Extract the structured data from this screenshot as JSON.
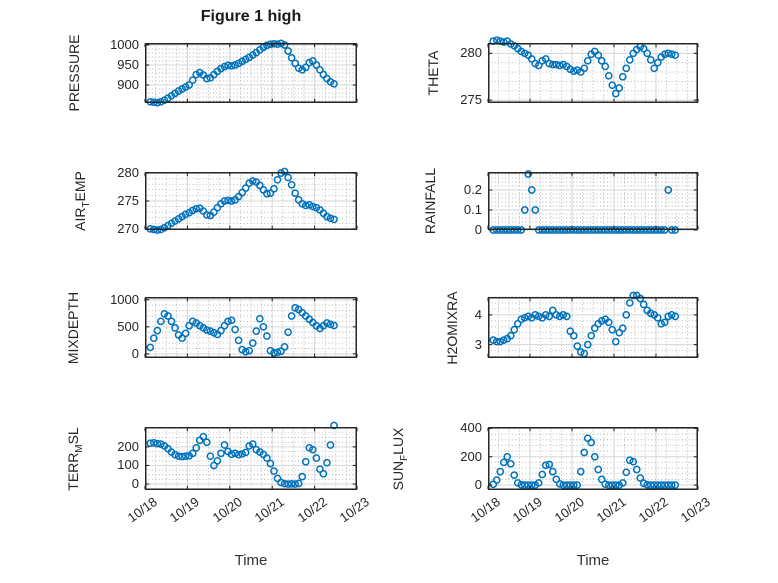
{
  "figure": {
    "title": "Figure 1 high",
    "marker_color": "#0072BD",
    "axis_color": "#262626",
    "grid_major_color": "#d6d6d6",
    "grid_minor_color": "#b0b0b0",
    "background": "#ffffff"
  },
  "x_axis": {
    "label": "Time",
    "tick_labels": [
      "10/18",
      "10/19",
      "10/20",
      "10/21",
      "10/22",
      "10/23"
    ],
    "tick_hours": [
      0,
      24,
      48,
      72,
      96,
      120
    ],
    "range_hours": [
      0,
      120
    ],
    "minor_step_hours": 6
  },
  "chart_data": {
    "type": "scatter",
    "marker": "open-circle",
    "grid": "major-solid-minor-dotted",
    "time_hours": [
      3,
      5,
      7,
      9,
      11,
      13,
      15,
      17,
      19,
      21,
      23,
      25,
      27,
      29,
      31,
      33,
      35,
      37,
      39,
      41,
      43,
      45,
      47,
      49,
      51,
      53,
      55,
      57,
      59,
      61,
      63,
      65,
      67,
      69,
      71,
      73,
      75,
      77,
      79,
      81,
      83,
      85,
      87,
      89,
      91,
      93,
      95,
      97,
      99,
      101,
      103,
      105,
      107
    ],
    "charts": [
      {
        "name": "PRESSURE",
        "ylabel_parts": [
          {
            "t": "PRESSURE"
          }
        ],
        "ylim": [
          855,
          1005
        ],
        "y_major_step": 50,
        "y_minor_step": 10,
        "yticks": [
          {
            "v": 900,
            "label": "900"
          },
          {
            "v": 950,
            "label": "950"
          },
          {
            "v": 1000,
            "label": "1000"
          }
        ],
        "values": [
          858,
          857,
          856,
          858,
          862,
          867,
          873,
          879,
          885,
          890,
          895,
          900,
          912,
          926,
          931,
          925,
          916,
          918,
          926,
          934,
          941,
          946,
          949,
          948,
          950,
          954,
          959,
          964,
          969,
          975,
          981,
          988,
          994,
          999,
          1002,
          1003,
          1002,
          1004,
          1000,
          985,
          968,
          954,
          942,
          938,
          944,
          956,
          960,
          950,
          938,
          926,
          916,
          908,
          903
        ]
      },
      {
        "name": "THETA",
        "ylabel_parts": [
          {
            "t": "THETA"
          }
        ],
        "ylim": [
          274.7,
          281.1
        ],
        "y_major_step": 5,
        "y_minor_step": 1,
        "yticks": [
          {
            "v": 275,
            "label": "275"
          },
          {
            "v": 280,
            "label": "280"
          }
        ],
        "values": [
          281.3,
          281.4,
          281.3,
          281.2,
          281.3,
          281.0,
          280.8,
          280.5,
          280.2,
          280.0,
          279.8,
          279.4,
          278.9,
          278.7,
          279.2,
          279.4,
          278.9,
          278.8,
          278.8,
          278.7,
          278.8,
          278.6,
          278.3,
          278.1,
          278.2,
          278.0,
          278.4,
          279.2,
          279.9,
          280.2,
          279.8,
          279.2,
          278.6,
          277.6,
          276.6,
          275.7,
          276.3,
          277.5,
          278.4,
          279.3,
          280.0,
          280.4,
          280.7,
          280.5,
          280.0,
          279.3,
          278.4,
          279.0,
          279.6,
          279.9,
          280.0,
          279.9,
          279.8
        ]
      },
      {
        "name": "AIR_TEMP",
        "ylabel_parts": [
          {
            "t": "AIR"
          },
          {
            "t": "T",
            "sub": true
          },
          {
            "t": "EMP"
          }
        ],
        "ylim": [
          269.8,
          280.2
        ],
        "y_major_step": 5,
        "y_minor_step": 1,
        "yticks": [
          {
            "v": 270,
            "label": "270"
          },
          {
            "v": 275,
            "label": "275"
          },
          {
            "v": 280,
            "label": "280"
          }
        ],
        "values": [
          270.0,
          269.9,
          269.8,
          269.9,
          270.2,
          270.6,
          271.0,
          271.4,
          271.8,
          272.2,
          272.6,
          272.9,
          273.3,
          273.6,
          273.7,
          273.2,
          272.5,
          272.4,
          273.0,
          273.8,
          274.5,
          275.0,
          275.1,
          275.0,
          275.2,
          275.8,
          276.5,
          277.3,
          278.2,
          278.6,
          278.4,
          277.8,
          277.0,
          276.3,
          276.4,
          277.2,
          278.8,
          280.0,
          280.3,
          279.2,
          277.9,
          276.4,
          275.2,
          274.5,
          274.2,
          274.3,
          274.0,
          273.8,
          273.4,
          272.8,
          272.2,
          271.9,
          271.7
        ]
      },
      {
        "name": "RAINFALL",
        "ylabel_parts": [
          {
            "t": "RAINFALL"
          }
        ],
        "ylim": [
          0,
          0.29
        ],
        "y_major_step": 0.1,
        "y_minor_step": 0.02,
        "yticks": [
          {
            "v": 0,
            "label": "0"
          },
          {
            "v": 0.1,
            "label": "0.1"
          },
          {
            "v": 0.2,
            "label": "0.2"
          }
        ],
        "values": [
          0,
          0,
          0,
          0,
          0,
          0,
          0,
          0,
          0,
          0.1,
          0.28,
          0.2,
          0.1,
          0,
          0,
          0,
          0,
          0,
          0,
          0,
          0,
          0,
          0,
          0,
          0,
          0,
          0,
          0,
          0,
          0,
          0,
          0,
          0,
          0,
          0,
          0,
          0,
          0,
          0,
          0,
          0,
          0,
          0,
          0,
          0,
          0,
          0,
          0,
          0,
          0,
          0.2,
          0,
          0
        ]
      },
      {
        "name": "MIXDEPTH",
        "ylabel_parts": [
          {
            "t": "MIXDEPTH"
          }
        ],
        "ylim": [
          -75,
          1050
        ],
        "y_major_step": 500,
        "y_minor_step": 100,
        "yticks": [
          {
            "v": 0,
            "label": "0"
          },
          {
            "v": 500,
            "label": "500"
          },
          {
            "v": 1000,
            "label": "1000"
          }
        ],
        "values": [
          120,
          290,
          430,
          600,
          740,
          700,
          600,
          480,
          350,
          290,
          380,
          520,
          600,
          570,
          520,
          480,
          440,
          420,
          390,
          360,
          430,
          520,
          600,
          620,
          450,
          250,
          80,
          40,
          60,
          200,
          420,
          650,
          500,
          330,
          60,
          20,
          30,
          50,
          130,
          400,
          700,
          850,
          820,
          760,
          700,
          640,
          580,
          520,
          470,
          520,
          570,
          545,
          525
        ]
      },
      {
        "name": "H2OMIXRA",
        "ylabel_parts": [
          {
            "t": "H2OMIXRA"
          }
        ],
        "ylim": [
          2.55,
          4.6
        ],
        "y_major_step": 1,
        "y_minor_step": 0.2,
        "yticks": [
          {
            "v": 3,
            "label": "3"
          },
          {
            "v": 4,
            "label": "4"
          }
        ],
        "values": [
          3.15,
          3.1,
          3.1,
          3.15,
          3.2,
          3.3,
          3.5,
          3.7,
          3.85,
          3.9,
          3.95,
          3.9,
          4.0,
          3.95,
          3.9,
          4.0,
          3.95,
          4.15,
          4.0,
          3.95,
          4.0,
          3.95,
          3.45,
          3.3,
          2.95,
          2.75,
          2.7,
          3.0,
          3.3,
          3.55,
          3.7,
          3.8,
          3.85,
          3.75,
          3.5,
          3.1,
          3.4,
          3.55,
          4.0,
          4.4,
          4.65,
          4.65,
          4.55,
          4.35,
          4.15,
          4.05,
          4.0,
          3.9,
          3.7,
          3.75,
          3.95,
          4.0,
          3.95
        ]
      },
      {
        "name": "TERR_MSL",
        "ylabel_parts": [
          {
            "t": "TERR"
          },
          {
            "t": "M",
            "sub": true
          },
          {
            "t": "SL"
          }
        ],
        "ylim": [
          -32,
          307
        ],
        "y_major_step": 100,
        "y_minor_step": 25,
        "yticks": [
          {
            "v": 0,
            "label": "0"
          },
          {
            "v": 100,
            "label": "100"
          },
          {
            "v": 200,
            "label": "200"
          }
        ],
        "values": [
          220,
          222,
          218,
          215,
          205,
          190,
          172,
          158,
          150,
          148,
          150,
          152,
          165,
          195,
          235,
          255,
          225,
          150,
          100,
          125,
          165,
          210,
          175,
          160,
          165,
          158,
          162,
          170,
          205,
          215,
          185,
          172,
          160,
          140,
          110,
          70,
          30,
          8,
          2,
          0,
          1,
          0,
          3,
          40,
          120,
          195,
          185,
          140,
          80,
          55,
          115,
          210,
          315
        ]
      },
      {
        "name": "SUN_FLUX",
        "ylabel_parts": [
          {
            "t": "SUN"
          },
          {
            "t": "F",
            "sub": true
          },
          {
            "t": "LUX"
          }
        ],
        "ylim": [
          -35,
          410
        ],
        "y_major_step": 200,
        "y_minor_step": 40,
        "yticks": [
          {
            "v": 0,
            "label": "0"
          },
          {
            "v": 200,
            "label": "200"
          },
          {
            "v": 400,
            "label": "400"
          }
        ],
        "values": [
          5,
          35,
          95,
          160,
          200,
          150,
          70,
          15,
          2,
          0,
          0,
          0,
          0,
          15,
          75,
          140,
          145,
          95,
          40,
          8,
          0,
          0,
          0,
          0,
          0,
          95,
          230,
          330,
          300,
          200,
          110,
          40,
          6,
          0,
          0,
          0,
          0,
          15,
          90,
          175,
          165,
          110,
          50,
          12,
          2,
          0,
          0,
          0,
          0,
          0,
          0,
          0,
          0
        ]
      }
    ]
  }
}
